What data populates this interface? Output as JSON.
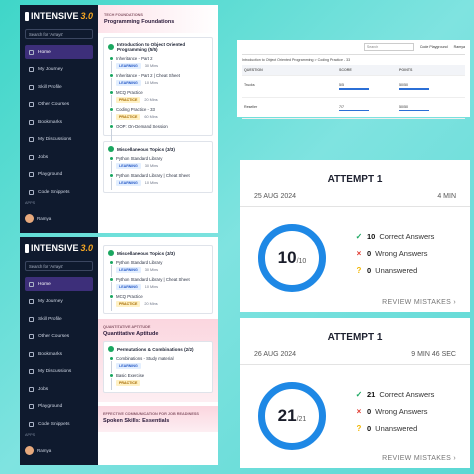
{
  "sidebar": {
    "logo": "INTENSIVE",
    "version": "3.0",
    "search": "Search for 'Arrays'",
    "menu": [
      "Home",
      "My Journey",
      "Skill Profile",
      "Other Courses",
      "Bookmarks",
      "My Discussions",
      "Jobs",
      "Playground",
      "Code Snippets"
    ],
    "apps": "APPS",
    "user": "Ramya"
  },
  "top_course": {
    "track": "TECH FOUNDATIONS",
    "title": "Programming Foundations",
    "sections": [
      {
        "title": "Introduction to Object Oriented Programming (5/5)",
        "items": [
          {
            "name": "Inheritance - Part 2",
            "tag": "LEARNING",
            "duration": "30 Mins"
          },
          {
            "name": "Inheritance - Part 2 | Cheat Sheet",
            "tag": "LEARNING",
            "duration": "10 Mins"
          },
          {
            "name": "MCQ Practice",
            "tag": "PRACTICE",
            "duration": "20 Mins"
          },
          {
            "name": "Coding Practice - 33",
            "tag": "PRACTICE",
            "duration": "60 Mins"
          },
          {
            "name": "OOP: On-Demand Session"
          }
        ]
      },
      {
        "title": "Miscellaneous Topics (3/3)",
        "items": [
          {
            "name": "Python Standard Library",
            "tag": "LEARNING",
            "duration": "30 Mins"
          },
          {
            "name": "Python Standard Library | Cheat Sheet",
            "tag": "LEARNING",
            "duration": "10 Mins"
          }
        ]
      }
    ]
  },
  "bottom_course": {
    "sections": [
      {
        "title": "Miscellaneous Topics (3/3)",
        "items": [
          {
            "name": "Python Standard Library",
            "tag": "LEARNING",
            "duration": "30 Mins"
          },
          {
            "name": "Python Standard Library | Cheat Sheet",
            "tag": "LEARNING",
            "duration": "10 Mins"
          },
          {
            "name": "MCQ Practice",
            "tag": "PRACTICE",
            "duration": "20 Mins"
          }
        ]
      }
    ],
    "tracks": [
      {
        "track": "QUANTITATIVE APTITUDE",
        "title": "Quantitative Aptitude",
        "sections": [
          {
            "title": "Permutations & Combinations (2/2)",
            "items": [
              {
                "name": "Combinations - Study material",
                "tag": "LEARNING"
              },
              {
                "name": "Basic Exercise",
                "tag": "PRACTICE"
              }
            ]
          }
        ]
      },
      {
        "track": "EFFECTIVE COMMUNICATION FOR JOB READINESS",
        "title": "Spoken Skills: Essentials"
      }
    ]
  },
  "table_screen": {
    "breadcrumb": "Introduction to Object Oriented Programming > Coding Practice - 33",
    "search": "Search",
    "playground": "Code Playground",
    "user": "Ramya",
    "columns": [
      "QUESTION",
      "SCORE",
      "POINTS"
    ],
    "rows": [
      [
        "Trucks",
        "5/5",
        "50/50"
      ],
      [
        "Reseller",
        "7/7",
        "50/50"
      ]
    ]
  },
  "attempts": [
    {
      "title": "ATTEMPT 1",
      "date": "25 AUG 2024",
      "time": "4 MIN",
      "score": "10",
      "total": "/10",
      "stats": [
        {
          "count": 10,
          "label": "Correct Answers"
        },
        {
          "count": 0,
          "label": "Wrong Answers"
        },
        {
          "count": 0,
          "label": "Unanswered"
        }
      ],
      "review": "REVIEW MISTAKES"
    },
    {
      "title": "ATTEMPT 1",
      "date": "26 AUG 2024",
      "time": "9 MIN 46 SEC",
      "score": "21",
      "total": "/21",
      "stats": [
        {
          "count": 21,
          "label": "Correct Answers"
        },
        {
          "count": 0,
          "label": "Wrong Answers"
        },
        {
          "count": 0,
          "label": "Unanswered"
        }
      ],
      "review": "REVIEW MISTAKES"
    }
  ]
}
